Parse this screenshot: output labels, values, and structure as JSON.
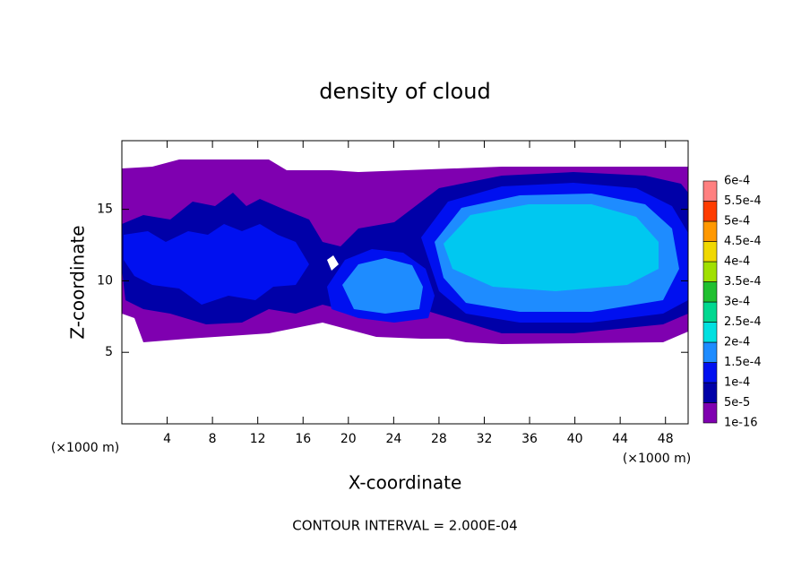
{
  "chart_data": {
    "type": "contour",
    "title": "density of cloud",
    "xlabel": "X-coordinate",
    "ylabel": "Z-coordinate",
    "xunit": "(×1000 m)",
    "yunit": "(×1000 m)",
    "note": "CONTOUR INTERVAL = 2.000E-04",
    "xlim": [
      0,
      50
    ],
    "ylim": [
      0,
      19.8
    ],
    "xticks": [
      4,
      8,
      12,
      16,
      20,
      24,
      28,
      32,
      36,
      40,
      44,
      48
    ],
    "yticks": [
      5,
      10,
      15
    ],
    "colorbar": {
      "ticks": [
        {
          "value": 1e-16,
          "label": "1e-16"
        },
        {
          "value": 5e-05,
          "label": "5e-5"
        },
        {
          "value": 0.0001,
          "label": "1e-4"
        },
        {
          "value": 0.00015,
          "label": "1.5e-4"
        },
        {
          "value": 0.0002,
          "label": "2e-4"
        },
        {
          "value": 0.00025,
          "label": "2.5e-4"
        },
        {
          "value": 0.0003,
          "label": "3e-4"
        },
        {
          "value": 0.00035,
          "label": "3.5e-4"
        },
        {
          "value": 0.0004,
          "label": "4e-4"
        },
        {
          "value": 0.00045,
          "label": "4.5e-4"
        },
        {
          "value": 0.0005,
          "label": "5e-4"
        },
        {
          "value": 0.00055,
          "label": "5.5e-4"
        },
        {
          "value": 0.0006,
          "label": "6e-4"
        }
      ],
      "colors": [
        "#7f00b0",
        "#0000a8",
        "#0010f0",
        "#1e8cff",
        "#00e0e0",
        "#00d890",
        "#20c030",
        "#a0e000",
        "#f0d800",
        "#ff9800",
        "#ff3c00",
        "#ff8080"
      ]
    }
  }
}
